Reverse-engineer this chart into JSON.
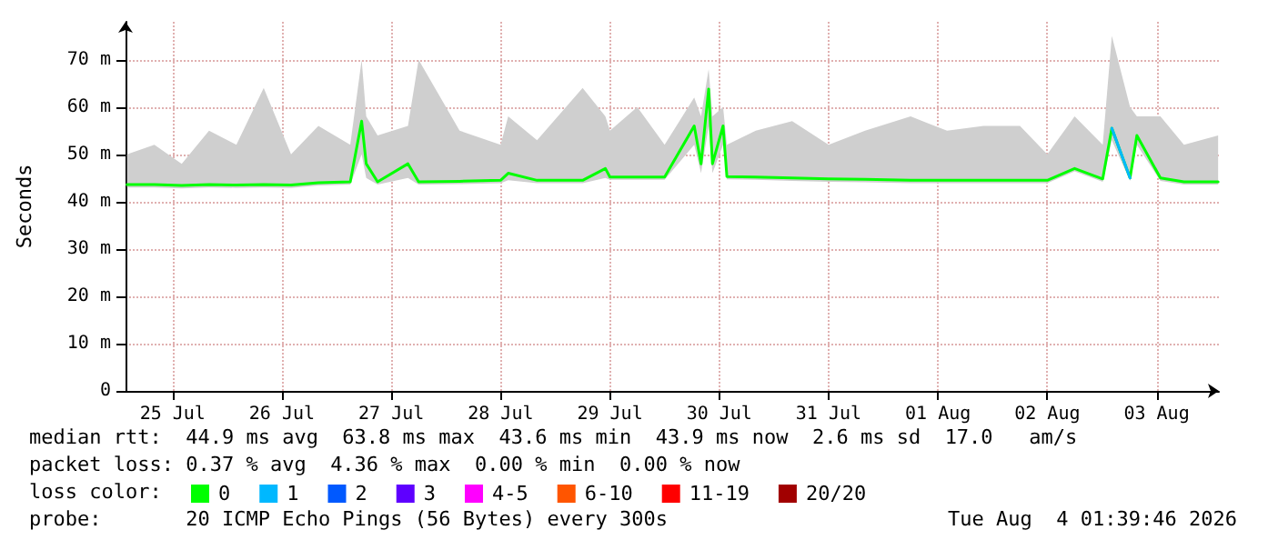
{
  "chart_data": {
    "type": "line",
    "ylabel": "Seconds",
    "x": [
      "2026-07-25T02:00",
      "2026-07-25T08:00",
      "2026-07-25T14:00",
      "2026-07-25T20:00",
      "2026-07-26T02:00",
      "2026-07-26T08:00",
      "2026-07-26T14:00",
      "2026-07-26T20:00",
      "2026-07-27T03:00",
      "2026-07-27T05:30",
      "2026-07-27T06:30",
      "2026-07-27T09:00",
      "2026-07-27T15:40",
      "2026-07-27T18:00",
      "2026-07-28T03:00",
      "2026-07-28T12:00",
      "2026-07-28T13:40",
      "2026-07-28T20:00",
      "2026-07-29T06:00",
      "2026-07-29T11:00",
      "2026-07-29T12:00",
      "2026-07-29T18:00",
      "2026-07-30T00:00",
      "2026-07-30T06:30",
      "2026-07-30T08:00",
      "2026-07-30T09:40",
      "2026-07-30T10:30",
      "2026-07-30T12:50",
      "2026-07-30T13:40",
      "2026-07-30T20:00",
      "2026-07-31T04:00",
      "2026-07-31T12:00",
      "2026-07-31T20:00",
      "2026-08-01T06:00",
      "2026-08-01T14:00",
      "2026-08-01T22:00",
      "2026-08-02T06:00",
      "2026-08-02T12:00",
      "2026-08-02T18:00",
      "2026-08-03T00:10",
      "2026-08-03T02:10",
      "2026-08-03T06:10",
      "2026-08-03T07:40",
      "2026-08-03T12:50",
      "2026-08-03T18:00",
      "2026-08-04T01:30"
    ],
    "series": [
      {
        "name": "0",
        "color": "#00ff00",
        "values": [
          43.6,
          43.6,
          43.4,
          43.6,
          43.5,
          43.6,
          43.5,
          44,
          44.2,
          57,
          48,
          44.2,
          48,
          44.2,
          44.3,
          44.5,
          46,
          44.5,
          44.5,
          47,
          45.2,
          45.2,
          45.2,
          56,
          48,
          63.8,
          48,
          56,
          45.3,
          45.2,
          45,
          44.8,
          44.7,
          44.5,
          44.5,
          44.5,
          44.5,
          44.5,
          47,
          44.8,
          55.5,
          45,
          54,
          45,
          44.2,
          44.2
        ],
        "lower": [
          43,
          43,
          42.8,
          43,
          42.9,
          43,
          42.9,
          43.4,
          43.6,
          50,
          45,
          43.6,
          45,
          43.6,
          43.7,
          43.9,
          44.5,
          43.9,
          43.9,
          45,
          44.6,
          44.6,
          44.6,
          52,
          46,
          56,
          46,
          52,
          44.7,
          44.6,
          44.4,
          44.2,
          44.1,
          43.9,
          43.9,
          43.9,
          43.9,
          43.9,
          46.4,
          44.2,
          53,
          44.4,
          52,
          44.4,
          43.6,
          43.6
        ],
        "upper": [
          50,
          52,
          48,
          55,
          52,
          64,
          50,
          56,
          52,
          70,
          58,
          54,
          56,
          70,
          55,
          52,
          58,
          53,
          64,
          58,
          55,
          60,
          52,
          62,
          58,
          68,
          58,
          60,
          52,
          55,
          57,
          52,
          55,
          58,
          55,
          56,
          56,
          50,
          58,
          52,
          75,
          60,
          58,
          58,
          52,
          54
        ]
      },
      {
        "name": "1",
        "color": "#00b8ff",
        "values": [
          null,
          null,
          null,
          null,
          null,
          null,
          null,
          null,
          null,
          null,
          null,
          null,
          null,
          null,
          null,
          null,
          null,
          null,
          null,
          null,
          null,
          null,
          null,
          null,
          null,
          null,
          null,
          null,
          null,
          null,
          null,
          null,
          null,
          null,
          null,
          null,
          null,
          null,
          null,
          null,
          55.5,
          45,
          null,
          null,
          null,
          null
        ]
      },
      {
        "name": "2",
        "color": "#0059ff",
        "values": [
          null,
          null,
          null,
          null,
          null,
          null,
          null,
          null,
          null,
          null,
          null,
          null,
          null,
          null,
          null,
          null,
          null,
          null,
          null,
          null,
          null,
          null,
          null,
          null,
          null,
          null,
          null,
          null,
          null,
          null,
          null,
          null,
          null,
          null,
          null,
          null,
          null,
          null,
          null,
          null,
          null,
          null,
          null,
          null,
          null,
          null
        ]
      },
      {
        "name": "3",
        "color": "#5e00ff",
        "values": [
          null,
          null,
          null,
          null,
          null,
          null,
          null,
          null,
          null,
          null,
          null,
          null,
          null,
          null,
          null,
          null,
          null,
          null,
          null,
          null,
          null,
          null,
          null,
          null,
          null,
          null,
          null,
          null,
          null,
          null,
          null,
          null,
          null,
          null,
          null,
          null,
          null,
          null,
          null,
          null,
          null,
          null,
          null,
          null,
          null,
          null
        ]
      },
      {
        "name": "4-5",
        "color": "#ff00ff",
        "values": [
          null,
          null,
          null,
          null,
          null,
          null,
          null,
          null,
          null,
          null,
          null,
          null,
          null,
          null,
          null,
          null,
          null,
          null,
          null,
          null,
          null,
          null,
          null,
          null,
          null,
          null,
          null,
          null,
          null,
          null,
          null,
          null,
          null,
          null,
          null,
          null,
          null,
          null,
          null,
          null,
          null,
          null,
          null,
          null,
          null,
          null
        ]
      },
      {
        "name": "6-10",
        "color": "#ff5500",
        "values": [
          null,
          null,
          null,
          null,
          null,
          null,
          null,
          null,
          null,
          null,
          null,
          null,
          null,
          null,
          null,
          null,
          null,
          null,
          null,
          null,
          null,
          null,
          null,
          null,
          null,
          null,
          null,
          null,
          null,
          null,
          null,
          null,
          null,
          null,
          null,
          null,
          null,
          null,
          null,
          null,
          null,
          null,
          null,
          null,
          null,
          null
        ]
      },
      {
        "name": "11-19",
        "color": "#ff0000",
        "values": [
          null,
          null,
          null,
          null,
          null,
          null,
          null,
          null,
          null,
          null,
          null,
          null,
          null,
          null,
          null,
          null,
          null,
          null,
          null,
          null,
          null,
          null,
          null,
          null,
          null,
          null,
          null,
          null,
          null,
          null,
          null,
          null,
          null,
          null,
          null,
          null,
          null,
          null,
          null,
          null,
          null,
          null,
          null,
          null,
          null,
          null
        ]
      },
      {
        "name": "20/20",
        "color": "#a10000",
        "values": [
          null,
          null,
          null,
          null,
          null,
          null,
          null,
          null,
          null,
          null,
          null,
          null,
          null,
          null,
          null,
          null,
          null,
          null,
          null,
          null,
          null,
          null,
          null,
          null,
          null,
          null,
          null,
          null,
          null,
          null,
          null,
          null,
          null,
          null,
          null,
          null,
          null,
          null,
          null,
          null,
          null,
          null,
          null,
          null,
          null,
          null
        ]
      }
    ],
    "xlim": [
      "2026-07-25T01:40",
      "2026-08-04T01:40"
    ],
    "xticks": [
      {
        "value": "2026-07-25T12:00",
        "label": "25 Jul"
      },
      {
        "value": "2026-07-26T12:00",
        "label": "26 Jul"
      },
      {
        "value": "2026-07-27T12:00",
        "label": "27 Jul"
      },
      {
        "value": "2026-07-28T12:00",
        "label": "28 Jul"
      },
      {
        "value": "2026-07-29T12:00",
        "label": "29 Jul"
      },
      {
        "value": "2026-07-30T12:00",
        "label": "30 Jul"
      },
      {
        "value": "2026-07-31T12:00",
        "label": "31 Jul"
      },
      {
        "value": "2026-08-01T12:00",
        "label": "01 Aug"
      },
      {
        "value": "2026-08-02T12:00",
        "label": "02 Aug"
      },
      {
        "value": "2026-08-03T12:00",
        "label": "03 Aug"
      }
    ],
    "ylim": [
      0,
      78
    ],
    "yticks": [
      0,
      {
        "value": 10,
        "label": "10 m"
      },
      {
        "value": 20,
        "label": "20 m"
      },
      {
        "value": 30,
        "label": "30 m"
      },
      {
        "value": 40,
        "label": "40 m"
      },
      {
        "value": 50,
        "label": "50 m"
      },
      {
        "value": 60,
        "label": "60 m"
      },
      {
        "value": 70,
        "label": "70 m"
      }
    ],
    "grid": true,
    "legend": "bottom",
    "marker": "none",
    "line_style": "solid",
    "annotations": [
      "median rtt:  44.9 ms avg  63.8 ms max  43.6 ms min  43.9 ms now  2.6 ms sd  17.0   am/s",
      "packet loss: 0.37 % avg  4.36 % max  0.00 % min  0.00 % now",
      "loss color:",
      "probe:       20 ICMP Echo Pings (56 Bytes) every 300s",
      "Tue Aug  4 01:39:46 2026"
    ]
  }
}
